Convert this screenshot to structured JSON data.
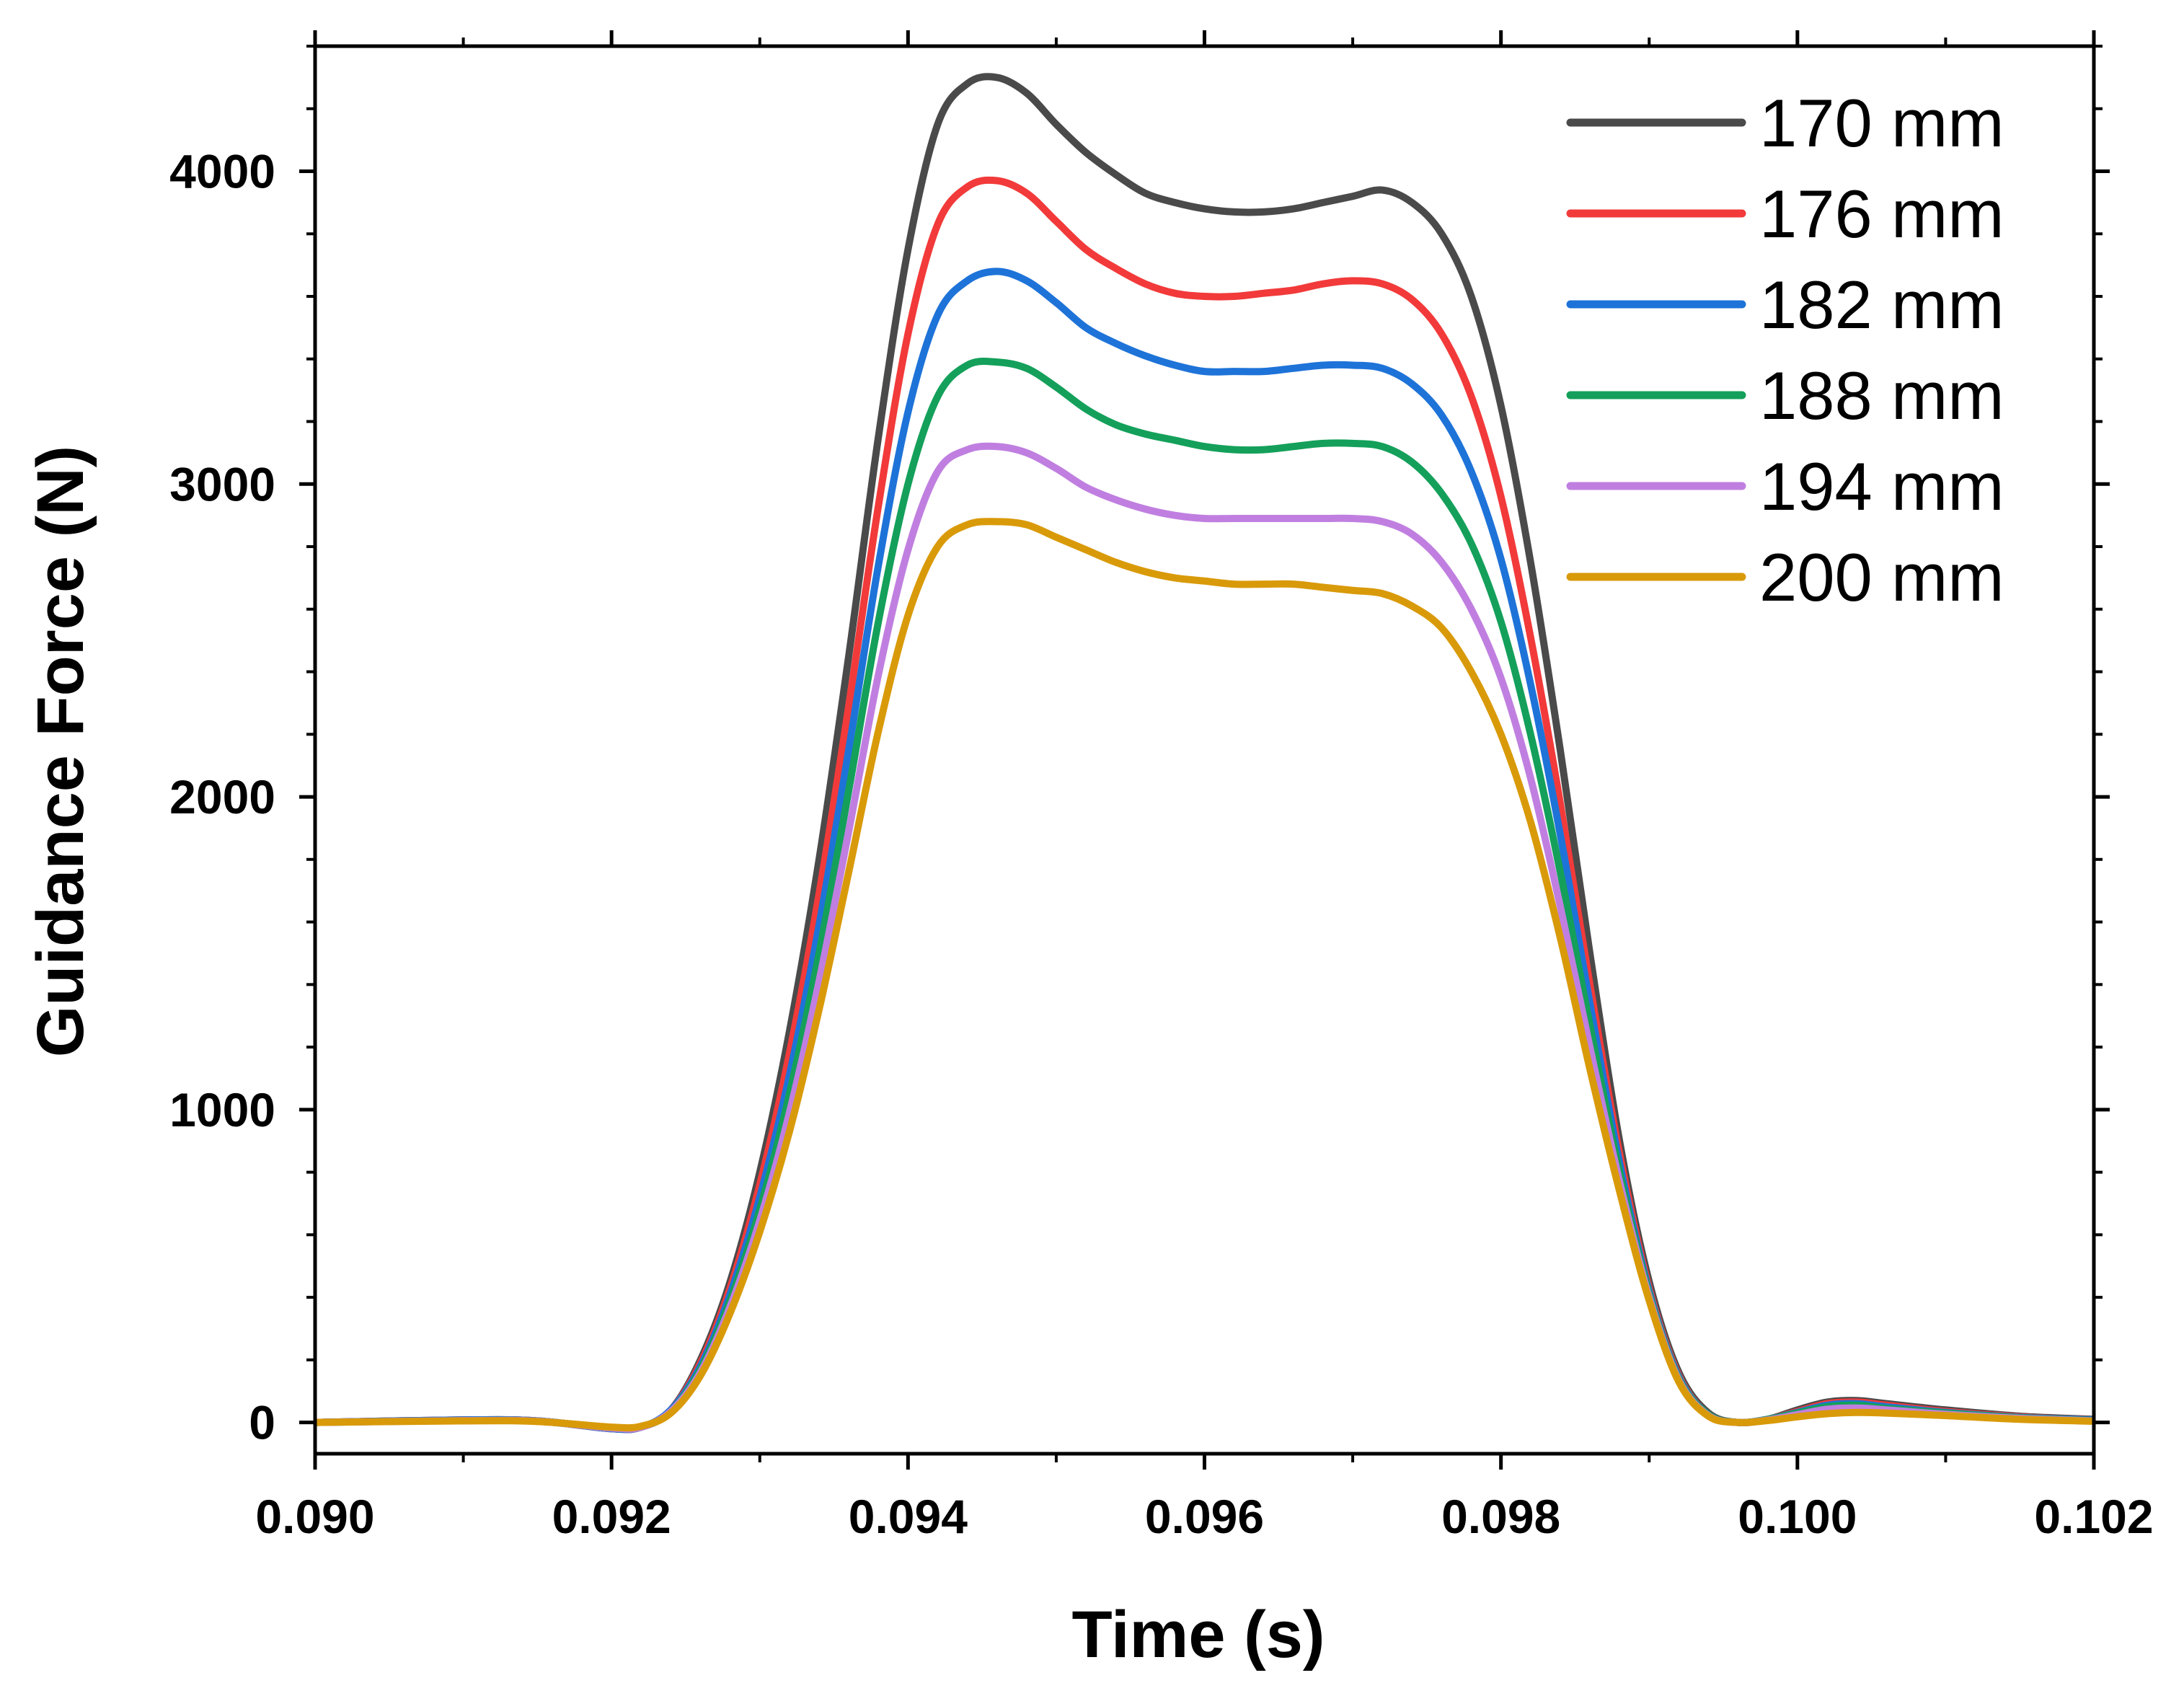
{
  "chart_data": {
    "type": "line",
    "title": "",
    "xlabel": "Time (s)",
    "ylabel": "Guidance Force (N)",
    "xlim": [
      0.09,
      0.102
    ],
    "ylim": [
      -100,
      4400
    ],
    "x_ticks": [
      0.09,
      0.092,
      0.094,
      0.096,
      0.098,
      0.1,
      0.102
    ],
    "x_tick_labels": [
      "0.090",
      "0.092",
      "0.094",
      "0.096",
      "0.098",
      "0.100",
      "0.102"
    ],
    "y_ticks": [
      0,
      1000,
      2000,
      3000,
      4000
    ],
    "y_tick_labels": [
      "0",
      "1000",
      "2000",
      "3000",
      "4000"
    ],
    "grid": false,
    "legend_position": "top-right",
    "x": [
      0.09,
      0.091,
      0.0915,
      0.092,
      0.0922,
      0.0924,
      0.0926,
      0.0928,
      0.093,
      0.0932,
      0.0934,
      0.0936,
      0.0938,
      0.094,
      0.0942,
      0.0944,
      0.0946,
      0.0948,
      0.095,
      0.0952,
      0.0954,
      0.0956,
      0.0958,
      0.096,
      0.0962,
      0.0964,
      0.0966,
      0.0968,
      0.097,
      0.0972,
      0.0974,
      0.0976,
      0.0978,
      0.098,
      0.0982,
      0.0984,
      0.0986,
      0.0988,
      0.099,
      0.0992,
      0.0994,
      0.0996,
      0.0998,
      0.1,
      0.1002,
      0.1004,
      0.1006,
      0.101,
      0.1015,
      0.102
    ],
    "series": [
      {
        "name": "170 mm",
        "color": "#4a4a4a",
        "values": [
          0,
          8,
          5,
          -20,
          -15,
          40,
          200,
          450,
          800,
          1250,
          1800,
          2450,
          3150,
          3750,
          4150,
          4280,
          4300,
          4250,
          4150,
          4060,
          3990,
          3930,
          3900,
          3880,
          3870,
          3870,
          3880,
          3900,
          3920,
          3940,
          3900,
          3800,
          3600,
          3250,
          2750,
          2150,
          1500,
          900,
          450,
          160,
          30,
          0,
          10,
          40,
          65,
          70,
          60,
          40,
          20,
          10
        ]
      },
      {
        "name": "176 mm",
        "color": "#f23a3a",
        "values": [
          0,
          8,
          5,
          -20,
          -15,
          40,
          190,
          430,
          760,
          1180,
          1690,
          2290,
          2930,
          3480,
          3830,
          3950,
          3970,
          3930,
          3840,
          3750,
          3690,
          3640,
          3610,
          3600,
          3600,
          3610,
          3620,
          3640,
          3650,
          3640,
          3590,
          3480,
          3280,
          2960,
          2510,
          1980,
          1400,
          860,
          430,
          150,
          25,
          0,
          10,
          35,
          60,
          65,
          55,
          35,
          18,
          8
        ]
      },
      {
        "name": "182 mm",
        "color": "#1e73d8",
        "values": [
          0,
          8,
          5,
          -20,
          -15,
          40,
          180,
          410,
          720,
          1110,
          1590,
          2150,
          2740,
          3230,
          3540,
          3650,
          3680,
          3650,
          3580,
          3500,
          3450,
          3410,
          3380,
          3360,
          3360,
          3360,
          3370,
          3380,
          3380,
          3370,
          3320,
          3220,
          3040,
          2760,
          2360,
          1880,
          1340,
          830,
          420,
          145,
          25,
          0,
          10,
          32,
          55,
          60,
          50,
          32,
          16,
          8
        ]
      },
      {
        "name": "188 mm",
        "color": "#14a05a",
        "values": [
          0,
          6,
          4,
          -18,
          -15,
          35,
          170,
          390,
          680,
          1050,
          1500,
          2020,
          2560,
          3000,
          3280,
          3380,
          3390,
          3370,
          3310,
          3240,
          3190,
          3160,
          3140,
          3120,
          3110,
          3110,
          3120,
          3130,
          3130,
          3120,
          3070,
          2970,
          2810,
          2560,
          2200,
          1760,
          1270,
          800,
          410,
          140,
          25,
          0,
          10,
          30,
          50,
          55,
          45,
          30,
          15,
          6
        ]
      },
      {
        "name": "194 mm",
        "color": "#c07fe0",
        "values": [
          0,
          6,
          4,
          -18,
          -15,
          35,
          160,
          370,
          645,
          990,
          1410,
          1890,
          2390,
          2790,
          3040,
          3110,
          3120,
          3100,
          3050,
          2990,
          2950,
          2920,
          2900,
          2890,
          2890,
          2890,
          2890,
          2890,
          2890,
          2880,
          2840,
          2750,
          2600,
          2380,
          2060,
          1650,
          1200,
          770,
          400,
          135,
          22,
          0,
          8,
          25,
          42,
          46,
          40,
          26,
          13,
          5
        ]
      },
      {
        "name": "200 mm",
        "color": "#d99a0a",
        "values": [
          0,
          5,
          3,
          -15,
          -12,
          30,
          150,
          350,
          610,
          930,
          1320,
          1760,
          2210,
          2580,
          2800,
          2870,
          2880,
          2870,
          2830,
          2790,
          2750,
          2720,
          2700,
          2690,
          2680,
          2680,
          2680,
          2670,
          2660,
          2650,
          2610,
          2540,
          2400,
          2200,
          1920,
          1550,
          1130,
          740,
          390,
          130,
          20,
          0,
          6,
          18,
          28,
          32,
          30,
          22,
          10,
          4
        ]
      }
    ]
  }
}
